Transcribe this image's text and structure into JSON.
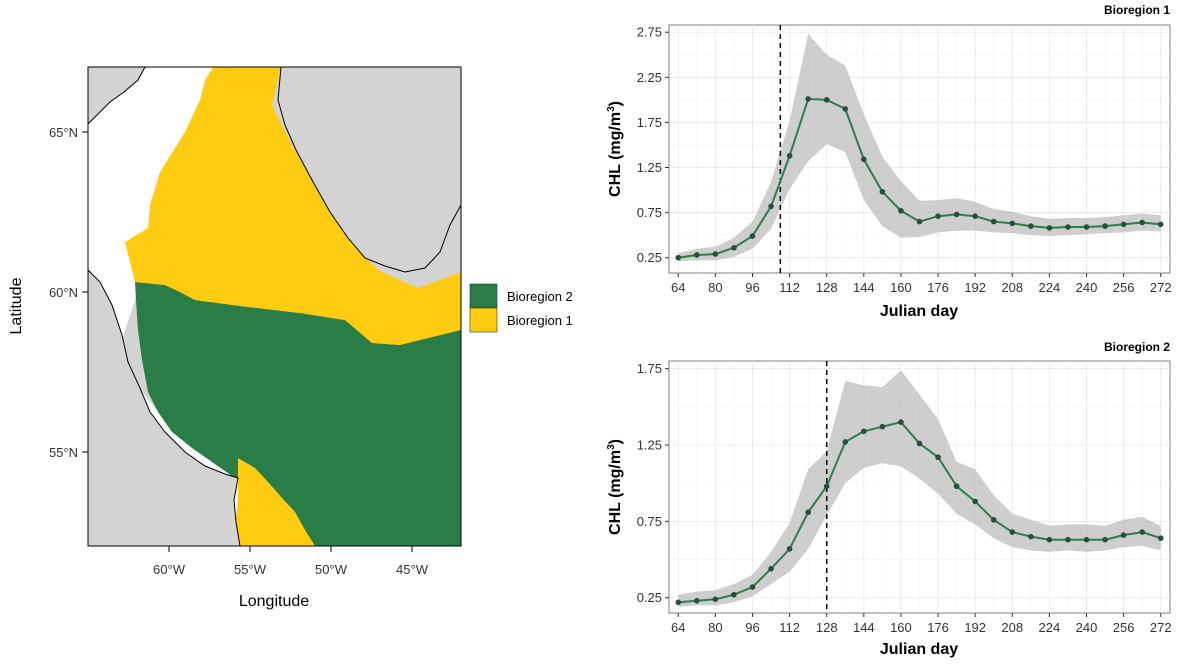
{
  "colors": {
    "land": "#d3d3d3",
    "bioregion_1": "#ffcc11",
    "bioregion_2": "#2a7d46",
    "line": "#2e7d4a",
    "point": "#274f40",
    "ribbon": "#bdbdbd",
    "coast": "#000000"
  },
  "map": {
    "xlabel": "Longitude",
    "ylabel": "Latitude",
    "x_ticks": [
      "60°W",
      "55°W",
      "50°W",
      "45°W"
    ],
    "y_ticks": [
      "65°N",
      "60°N",
      "55°N"
    ],
    "legend": [
      {
        "label": "Bioregion 2",
        "color": "#2a7d46"
      },
      {
        "label": "Bioregion 1",
        "color": "#ffcc11"
      }
    ]
  },
  "chart_data": [
    {
      "type": "line",
      "title": "Bioregion 1",
      "xlabel": "Julian day",
      "ylabel_main": "CHL  (mg/m",
      "ylabel_sup": "3",
      "ylabel_close": ")",
      "x_ticks": [
        64,
        80,
        96,
        112,
        128,
        144,
        160,
        176,
        192,
        208,
        224,
        240,
        256,
        272
      ],
      "y_ticks": [
        "0.25",
        "0.75",
        "1.25",
        "1.75",
        "2.25",
        "2.75"
      ],
      "xlim": [
        60,
        276
      ],
      "ylim": [
        0.08,
        2.83
      ],
      "vline": 108,
      "x": [
        64,
        72,
        80,
        88,
        96,
        104,
        112,
        120,
        128,
        136,
        144,
        152,
        160,
        168,
        176,
        184,
        192,
        200,
        208,
        216,
        224,
        232,
        240,
        248,
        256,
        264,
        272
      ],
      "y": [
        0.25,
        0.28,
        0.29,
        0.36,
        0.49,
        0.82,
        1.38,
        2.01,
        2.0,
        1.9,
        1.34,
        0.98,
        0.77,
        0.65,
        0.71,
        0.73,
        0.71,
        0.65,
        0.63,
        0.6,
        0.58,
        0.59,
        0.59,
        0.6,
        0.62,
        0.64,
        0.62
      ],
      "y_low": [
        0.21,
        0.22,
        0.22,
        0.26,
        0.35,
        0.57,
        1.01,
        1.32,
        1.51,
        1.42,
        0.89,
        0.6,
        0.47,
        0.48,
        0.53,
        0.55,
        0.55,
        0.53,
        0.52,
        0.5,
        0.49,
        0.5,
        0.51,
        0.52,
        0.53,
        0.55,
        0.54
      ],
      "y_high": [
        0.3,
        0.35,
        0.37,
        0.47,
        0.65,
        1.09,
        1.77,
        2.73,
        2.5,
        2.38,
        1.84,
        1.37,
        1.1,
        0.88,
        0.89,
        0.91,
        0.87,
        0.79,
        0.76,
        0.71,
        0.68,
        0.69,
        0.69,
        0.7,
        0.72,
        0.74,
        0.72
      ],
      "grid": true
    },
    {
      "type": "line",
      "title": "Bioregion 2",
      "xlabel": "Julian day",
      "ylabel_main": "CHL  (mg/m",
      "ylabel_sup": "3",
      "ylabel_close": ")",
      "x_ticks": [
        64,
        80,
        96,
        112,
        128,
        144,
        160,
        176,
        192,
        208,
        224,
        240,
        256,
        272
      ],
      "y_ticks": [
        "0.25",
        "0.75",
        "1.25",
        "1.75"
      ],
      "xlim": [
        60,
        276
      ],
      "ylim": [
        0.15,
        1.8
      ],
      "vline": 128,
      "x": [
        64,
        72,
        80,
        88,
        96,
        104,
        112,
        120,
        128,
        136,
        144,
        152,
        160,
        168,
        176,
        184,
        192,
        200,
        208,
        216,
        224,
        232,
        240,
        248,
        256,
        264,
        272
      ],
      "y": [
        0.22,
        0.23,
        0.24,
        0.27,
        0.32,
        0.44,
        0.57,
        0.81,
        0.98,
        1.27,
        1.34,
        1.37,
        1.4,
        1.26,
        1.17,
        0.98,
        0.88,
        0.76,
        0.68,
        0.65,
        0.63,
        0.63,
        0.63,
        0.63,
        0.66,
        0.68,
        0.64
      ],
      "y_low": [
        0.19,
        0.2,
        0.2,
        0.22,
        0.26,
        0.34,
        0.42,
        0.57,
        0.79,
        1.0,
        1.1,
        1.13,
        1.11,
        1.03,
        0.93,
        0.8,
        0.73,
        0.64,
        0.58,
        0.56,
        0.55,
        0.56,
        0.55,
        0.56,
        0.58,
        0.59,
        0.56
      ],
      "y_high": [
        0.27,
        0.29,
        0.3,
        0.34,
        0.4,
        0.55,
        0.74,
        1.09,
        1.21,
        1.67,
        1.64,
        1.63,
        1.74,
        1.58,
        1.42,
        1.14,
        1.09,
        0.92,
        0.8,
        0.76,
        0.72,
        0.73,
        0.73,
        0.72,
        0.76,
        0.78,
        0.72
      ],
      "grid": true
    }
  ]
}
